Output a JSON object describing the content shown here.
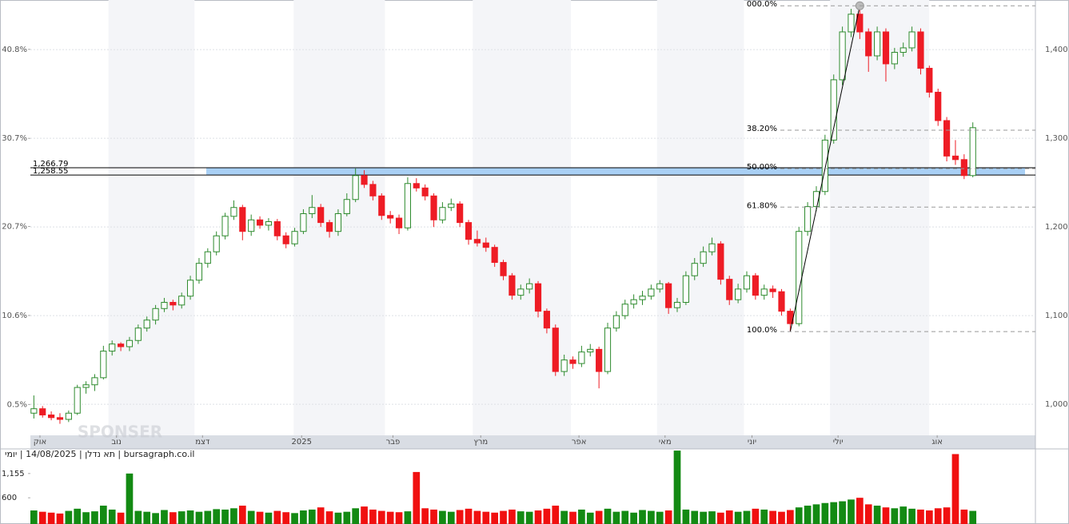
{
  "chart_data": {
    "type": "candlestick",
    "caption": "bursagraph.co.il | תא נדלן | 14/08/2025 | יומי",
    "watermark": "SPONSER",
    "up_color": "#2e8b2e",
    "down_color": "#ee1c25",
    "ylim": [
      965,
      1456
    ],
    "yticks": [
      {
        "value": 1000,
        "label": "1,000"
      },
      {
        "value": 1100,
        "label": "1,100"
      },
      {
        "value": 1200,
        "label": "1,200"
      },
      {
        "value": 1300,
        "label": "1,300"
      },
      {
        "value": 1400,
        "label": "1,400"
      }
    ],
    "y2lim": [
      -3.0,
      46.4
    ],
    "y2ticks": [
      {
        "value": 0.5,
        "label": "0.5%"
      },
      {
        "value": 10.6,
        "label": "10.6%"
      },
      {
        "value": 20.7,
        "label": "20.7%"
      },
      {
        "value": 30.7,
        "label": "30.7%"
      },
      {
        "value": 40.8,
        "label": "40.8%"
      }
    ],
    "xlim": [
      -0.4,
      115.2
    ],
    "xticks": [
      {
        "value": 0.7,
        "label": "אוק"
      },
      {
        "value": 9.5,
        "label": "נוב"
      },
      {
        "value": 19.4,
        "label": "דצמ"
      },
      {
        "value": 30.8,
        "label": "2025"
      },
      {
        "value": 41.3,
        "label": "פבר"
      },
      {
        "value": 51.4,
        "label": "מרץ"
      },
      {
        "value": 62.7,
        "label": "אפר"
      },
      {
        "value": 72.6,
        "label": "מאי"
      },
      {
        "value": 82.6,
        "label": "יוני"
      },
      {
        "value": 92.5,
        "label": "יולי"
      },
      {
        "value": 103.9,
        "label": "אוג"
      }
    ],
    "grid": true,
    "candles": [
      [
        990,
        1010,
        984,
        995
      ],
      [
        995,
        998,
        985,
        988
      ],
      [
        988,
        992,
        982,
        985
      ],
      [
        985,
        990,
        978,
        983
      ],
      [
        983,
        993,
        980,
        990
      ],
      [
        990,
        1022,
        988,
        1019
      ],
      [
        1019,
        1026,
        1012,
        1022
      ],
      [
        1022,
        1034,
        1015,
        1030
      ],
      [
        1030,
        1066,
        1028,
        1060
      ],
      [
        1060,
        1072,
        1055,
        1068
      ],
      [
        1068,
        1070,
        1060,
        1065
      ],
      [
        1065,
        1076,
        1060,
        1072
      ],
      [
        1072,
        1090,
        1068,
        1086
      ],
      [
        1086,
        1099,
        1082,
        1095
      ],
      [
        1095,
        1112,
        1090,
        1108
      ],
      [
        1108,
        1120,
        1104,
        1115
      ],
      [
        1115,
        1118,
        1106,
        1112
      ],
      [
        1112,
        1126,
        1108,
        1122
      ],
      [
        1122,
        1145,
        1118,
        1140
      ],
      [
        1140,
        1165,
        1136,
        1159
      ],
      [
        1159,
        1176,
        1154,
        1172
      ],
      [
        1172,
        1195,
        1168,
        1190
      ],
      [
        1190,
        1216,
        1186,
        1212
      ],
      [
        1212,
        1230,
        1208,
        1222
      ],
      [
        1222,
        1225,
        1185,
        1195
      ],
      [
        1195,
        1214,
        1190,
        1208
      ],
      [
        1208,
        1212,
        1198,
        1202
      ],
      [
        1202,
        1210,
        1196,
        1206
      ],
      [
        1206,
        1209,
        1185,
        1190
      ],
      [
        1190,
        1194,
        1176,
        1181
      ],
      [
        1181,
        1199,
        1178,
        1195
      ],
      [
        1195,
        1220,
        1192,
        1215
      ],
      [
        1215,
        1236,
        1210,
        1222
      ],
      [
        1222,
        1226,
        1200,
        1205
      ],
      [
        1205,
        1208,
        1188,
        1195
      ],
      [
        1195,
        1220,
        1190,
        1215
      ],
      [
        1215,
        1238,
        1212,
        1231
      ],
      [
        1231,
        1266,
        1228,
        1258
      ],
      [
        1258,
        1264,
        1244,
        1248
      ],
      [
        1248,
        1252,
        1230,
        1235
      ],
      [
        1235,
        1238,
        1208,
        1213
      ],
      [
        1213,
        1218,
        1204,
        1210
      ],
      [
        1210,
        1214,
        1192,
        1199
      ],
      [
        1199,
        1256,
        1196,
        1249
      ],
      [
        1249,
        1255,
        1240,
        1244
      ],
      [
        1244,
        1248,
        1230,
        1235
      ],
      [
        1235,
        1238,
        1200,
        1208
      ],
      [
        1208,
        1228,
        1204,
        1222
      ],
      [
        1222,
        1232,
        1218,
        1226
      ],
      [
        1226,
        1229,
        1200,
        1205
      ],
      [
        1205,
        1208,
        1180,
        1186
      ],
      [
        1186,
        1196,
        1178,
        1182
      ],
      [
        1182,
        1188,
        1172,
        1177
      ],
      [
        1177,
        1180,
        1155,
        1160
      ],
      [
        1160,
        1163,
        1140,
        1145
      ],
      [
        1145,
        1148,
        1118,
        1123
      ],
      [
        1123,
        1135,
        1118,
        1130
      ],
      [
        1130,
        1142,
        1125,
        1136
      ],
      [
        1136,
        1139,
        1098,
        1105
      ],
      [
        1105,
        1108,
        1080,
        1086
      ],
      [
        1086,
        1090,
        1032,
        1037
      ],
      [
        1037,
        1056,
        1032,
        1050
      ],
      [
        1050,
        1054,
        1040,
        1046
      ],
      [
        1046,
        1066,
        1042,
        1059
      ],
      [
        1059,
        1068,
        1054,
        1062
      ],
      [
        1062,
        1065,
        1018,
        1037
      ],
      [
        1037,
        1092,
        1034,
        1086
      ],
      [
        1086,
        1105,
        1082,
        1100
      ],
      [
        1100,
        1118,
        1096,
        1113
      ],
      [
        1113,
        1124,
        1108,
        1118
      ],
      [
        1118,
        1128,
        1112,
        1122
      ],
      [
        1122,
        1135,
        1118,
        1130
      ],
      [
        1130,
        1140,
        1126,
        1136
      ],
      [
        1136,
        1138,
        1102,
        1109
      ],
      [
        1109,
        1120,
        1104,
        1115
      ],
      [
        1115,
        1150,
        1112,
        1145
      ],
      [
        1145,
        1165,
        1140,
        1159
      ],
      [
        1159,
        1178,
        1155,
        1172
      ],
      [
        1172,
        1188,
        1168,
        1181
      ],
      [
        1181,
        1184,
        1135,
        1141
      ],
      [
        1141,
        1145,
        1112,
        1118
      ],
      [
        1118,
        1136,
        1114,
        1130
      ],
      [
        1130,
        1150,
        1126,
        1145
      ],
      [
        1145,
        1148,
        1118,
        1123
      ],
      [
        1123,
        1135,
        1118,
        1130
      ],
      [
        1130,
        1134,
        1120,
        1127
      ],
      [
        1127,
        1130,
        1100,
        1105
      ],
      [
        1105,
        1108,
        1082,
        1091
      ],
      [
        1091,
        1200,
        1088,
        1195
      ],
      [
        1195,
        1228,
        1190,
        1223
      ],
      [
        1223,
        1246,
        1218,
        1240
      ],
      [
        1240,
        1304,
        1236,
        1298
      ],
      [
        1298,
        1372,
        1294,
        1366
      ],
      [
        1366,
        1426,
        1360,
        1420
      ],
      [
        1420,
        1446,
        1414,
        1440
      ],
      [
        1440,
        1449.5,
        1412,
        1420
      ],
      [
        1420,
        1424,
        1375,
        1393
      ],
      [
        1393,
        1426,
        1388,
        1420
      ],
      [
        1420,
        1424,
        1364,
        1384
      ],
      [
        1384,
        1402,
        1378,
        1397
      ],
      [
        1397,
        1408,
        1392,
        1402
      ],
      [
        1402,
        1426,
        1398,
        1420
      ],
      [
        1420,
        1424,
        1372,
        1379
      ],
      [
        1379,
        1382,
        1346,
        1352
      ],
      [
        1352,
        1356,
        1314,
        1320
      ],
      [
        1320,
        1324,
        1274,
        1280
      ],
      [
        1280,
        1298,
        1270,
        1276
      ],
      [
        1276,
        1282,
        1254,
        1258
      ],
      [
        1258,
        1318,
        1256,
        1312
      ]
    ],
    "volume": [
      310,
      280,
      260,
      240,
      300,
      350,
      270,
      290,
      420,
      330,
      260,
      1155,
      300,
      280,
      250,
      320,
      270,
      290,
      310,
      280,
      300,
      340,
      330,
      360,
      420,
      300,
      280,
      260,
      300,
      270,
      250,
      310,
      330,
      380,
      290,
      260,
      280,
      360,
      400,
      330,
      300,
      280,
      270,
      290,
      1190,
      360,
      330,
      300,
      280,
      320,
      350,
      300,
      280,
      260,
      300,
      330,
      290,
      280,
      310,
      350,
      420,
      300,
      280,
      330,
      260,
      300,
      350,
      280,
      300,
      260,
      320,
      300,
      280,
      310,
      1680,
      330,
      300,
      280,
      290,
      260,
      310,
      280,
      300,
      350,
      330,
      300,
      280,
      320,
      380,
      420,
      450,
      480,
      500,
      520,
      560,
      600,
      450,
      420,
      380,
      360,
      400,
      350,
      330,
      310,
      360,
      380,
      1600,
      330,
      300
    ],
    "vlim": [
      0,
      1700
    ],
    "vticks": [
      600,
      {
        "value": 1155,
        "label": "1,155"
      }
    ],
    "zone": [
      {
        "value": 1266.79,
        "label": "1,266.79"
      },
      {
        "value": 1258.55,
        "label": "1,258.55"
      }
    ],
    "zone_color": "#a9d0f5",
    "trendline": {
      "x": [
        87,
        95
      ],
      "y": [
        1082,
        1449.5
      ]
    },
    "fib_levels": [
      {
        "value": 1449.5,
        "label": "000.0%"
      },
      {
        "value": 1309.1,
        "label": "38.20%"
      },
      {
        "value": 1265.8,
        "label": "50.00%"
      },
      {
        "value": 1222.4,
        "label": "61.80%"
      },
      {
        "value": 1082,
        "label": "100.0%"
      }
    ]
  }
}
